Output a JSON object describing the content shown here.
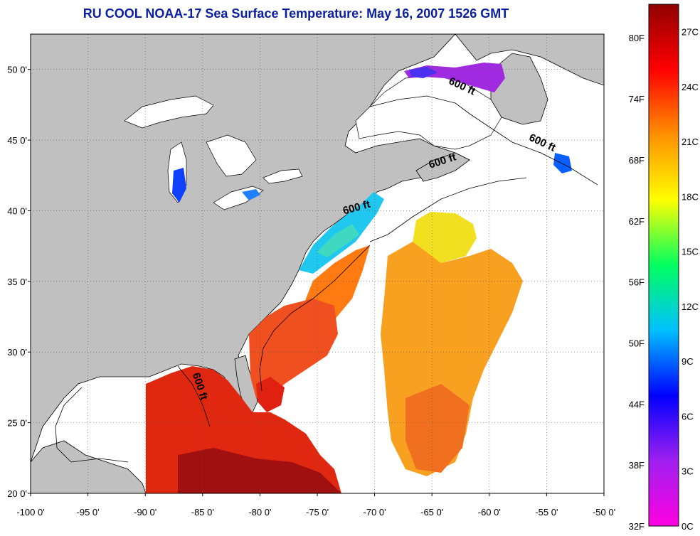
{
  "title": "RU COOL  NOAA-17  Sea Surface Temperature:  May 16, 2007 1526 GMT",
  "map": {
    "lon_range": [
      -100,
      -50
    ],
    "lat_range": [
      20,
      52.5
    ],
    "lon_ticks": [
      "-100 0'",
      "-95 0'",
      "-90 0'",
      "-85 0'",
      "-80 0'",
      "-75 0'",
      "-70 0'",
      "-65 0'",
      "-60 0'",
      "-55 0'",
      "-50 0'"
    ],
    "lat_ticks": [
      "50 0'",
      "45 0'",
      "40 0'",
      "35 0'",
      "30 0'",
      "25 0'",
      "20 0'"
    ],
    "grid": "dotted",
    "land_color": "#c0c0c0",
    "isobath_labels": [
      {
        "text": "600 ft",
        "lon": -62.5,
        "lat": 48.6,
        "angle": 25
      },
      {
        "text": "600 ft",
        "lon": -55.5,
        "lat": 44.6,
        "angle": 25
      },
      {
        "text": "600 ft",
        "lon": -64.0,
        "lat": 43.3,
        "angle": -18
      },
      {
        "text": "600 ft",
        "lon": -71.5,
        "lat": 40.0,
        "angle": -15
      },
      {
        "text": "600 ft",
        "lon": -85.5,
        "lat": 27.5,
        "angle": 72
      }
    ]
  },
  "colorbar": {
    "fahrenheit_labels": [
      "80F",
      "74F",
      "68F",
      "62F",
      "56F",
      "50F",
      "44F",
      "38F",
      "32F"
    ],
    "celsius_labels": [
      "27C",
      "24C",
      "21C",
      "18C",
      "15C",
      "12C",
      "9C",
      "6C",
      "3C",
      "0C"
    ],
    "range_c": [
      0,
      28.5
    ],
    "colors": [
      "#ff00e0",
      "#a020f0",
      "#0000ff",
      "#00c0ff",
      "#00ff60",
      "#ffff00",
      "#ff9000",
      "#ff0000",
      "#900000"
    ]
  }
}
